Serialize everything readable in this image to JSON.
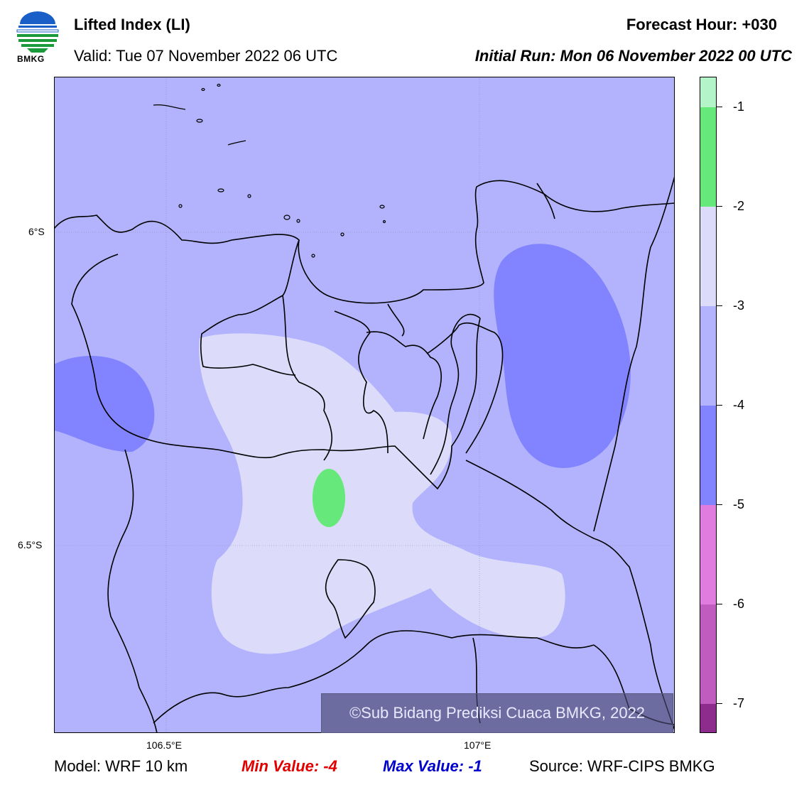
{
  "header": {
    "logo_text": "BMKG",
    "title": "Lifted Index (LI)",
    "valid": "Valid: Tue 07 November 2022 06 UTC",
    "forecast_hour": "Forecast Hour: +030",
    "initial_run": "Initial Run: Mon 06 November 2022 00 UTC"
  },
  "map": {
    "lat_labels": [
      "6°S",
      "6.5°S"
    ],
    "lon_labels": [
      "106.5°E",
      "107°E"
    ],
    "credit": "©Sub Bidang Prediksi Cuaca BMKG, 2022",
    "field_colors": {
      "minus1_to_minus2": "#66e87a",
      "minus2_to_minus3": "#dcdcfa",
      "minus3_to_minus4": "#b2b3fc",
      "minus4_to_minus5": "#8283fe"
    }
  },
  "colorbar": {
    "labels": [
      "-1",
      "-2",
      "-3",
      "-4",
      "-5",
      "-6",
      "-7"
    ],
    "colors": [
      "#b3f5c8",
      "#66e87a",
      "#dcdcfa",
      "#b2b3fc",
      "#8283fe",
      "#e07be0",
      "#c05cc0",
      "#8e2c8e"
    ]
  },
  "footer": {
    "model": "Model: WRF 10 km",
    "min_value": "Min Value: -4",
    "max_value": "Max Value: -1",
    "source": "Source: WRF-CIPS BMKG"
  }
}
